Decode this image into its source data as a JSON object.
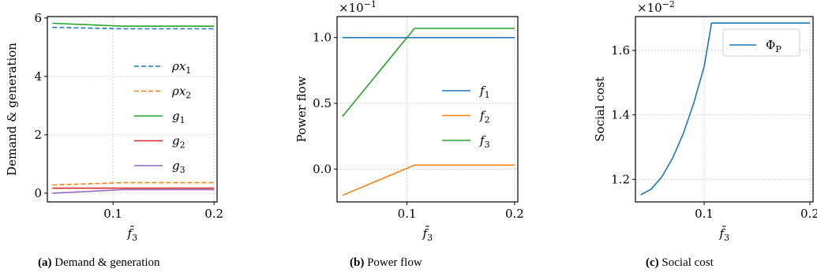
{
  "chart_data": [
    {
      "type": "line",
      "panel_tag": "(a)",
      "caption": "Demand & generation",
      "ylabel": "Demand & generation",
      "xlabel": "f̄",
      "xlabel_sub": "3",
      "xlim": [
        0.035,
        0.203
      ],
      "ylim": [
        -0.3,
        6.05
      ],
      "xticks": [
        {
          "v": 0.1,
          "label": "0.1"
        },
        {
          "v": 0.2,
          "label": "0.2"
        }
      ],
      "yticks": [
        {
          "v": 0,
          "label": "0"
        },
        {
          "v": 2,
          "label": "2"
        },
        {
          "v": 4,
          "label": "4"
        },
        {
          "v": 6,
          "label": "6"
        }
      ],
      "exponent": "",
      "grid": true,
      "legend_position": "right",
      "series": [
        {
          "name": "ρx",
          "sub": "1",
          "color": "#1f77b4",
          "dashed": true,
          "x": [
            0.04,
            0.11,
            0.2
          ],
          "y": [
            5.68,
            5.63,
            5.63
          ]
        },
        {
          "name": "ρx",
          "sub": "2",
          "color": "#ff7f0e",
          "dashed": true,
          "x": [
            0.04,
            0.11,
            0.2
          ],
          "y": [
            0.28,
            0.36,
            0.36
          ]
        },
        {
          "name": "g",
          "sub": "1",
          "color": "#2ca02c",
          "dashed": false,
          "x": [
            0.04,
            0.11,
            0.2
          ],
          "y": [
            5.82,
            5.72,
            5.72
          ]
        },
        {
          "name": "g",
          "sub": "2",
          "color": "#d62728",
          "dashed": false,
          "x": [
            0.04,
            0.11,
            0.2
          ],
          "y": [
            0.17,
            0.17,
            0.17
          ]
        },
        {
          "name": "g",
          "sub": "3",
          "color": "#9467bd",
          "dashed": false,
          "x": [
            0.04,
            0.11,
            0.2
          ],
          "y": [
            0.0,
            0.12,
            0.12
          ]
        }
      ]
    },
    {
      "type": "line",
      "panel_tag": "(b)",
      "caption": "Power flow",
      "ylabel": "Power flow",
      "xlabel": "f̄",
      "xlabel_sub": "3",
      "xlim": [
        0.035,
        0.203
      ],
      "ylim": [
        -0.25,
        1.16
      ],
      "xticks": [
        {
          "v": 0.1,
          "label": "0.1"
        },
        {
          "v": 0.2,
          "label": "0.2"
        }
      ],
      "yticks": [
        {
          "v": 0.0,
          "label": "0.0"
        },
        {
          "v": 0.5,
          "label": "0.5"
        },
        {
          "v": 1.0,
          "label": "1.0"
        }
      ],
      "exponent": "×10",
      "exponent_power": "−1",
      "grid": true,
      "legend_position": "right",
      "series": [
        {
          "name": "f",
          "sub": "1",
          "color": "#1f77b4",
          "dashed": false,
          "x": [
            0.04,
            0.2
          ],
          "y": [
            1.0,
            1.0
          ]
        },
        {
          "name": "f",
          "sub": "2",
          "color": "#ff7f0e",
          "dashed": false,
          "x": [
            0.04,
            0.107,
            0.2
          ],
          "y": [
            -0.2,
            0.03,
            0.03
          ]
        },
        {
          "name": "f",
          "sub": "3",
          "color": "#2ca02c",
          "dashed": false,
          "x": [
            0.04,
            0.107,
            0.2
          ],
          "y": [
            0.4,
            1.07,
            1.07
          ]
        }
      ]
    },
    {
      "type": "line",
      "panel_tag": "(c)",
      "caption": "Social cost",
      "ylabel": "Social cost",
      "xlabel": "f̄",
      "xlabel_sub": "3",
      "xlim": [
        0.035,
        0.203
      ],
      "ylim": [
        1.13,
        1.705
      ],
      "xticks": [
        {
          "v": 0.1,
          "label": "0.1"
        },
        {
          "v": 0.2,
          "label": "0.2"
        }
      ],
      "yticks": [
        {
          "v": 1.2,
          "label": "1.2"
        },
        {
          "v": 1.4,
          "label": "1.4"
        },
        {
          "v": 1.6,
          "label": "1.6"
        }
      ],
      "exponent": "×10",
      "exponent_power": "−2",
      "grid": true,
      "legend_position": "top-right",
      "series": [
        {
          "name": "Φ",
          "sub": "P",
          "color": "#1f77b4",
          "dashed": false,
          "x": [
            0.04,
            0.05,
            0.06,
            0.07,
            0.08,
            0.09,
            0.1,
            0.107,
            0.2
          ],
          "y": [
            1.152,
            1.17,
            1.208,
            1.265,
            1.34,
            1.435,
            1.55,
            1.685,
            1.685
          ]
        }
      ]
    }
  ]
}
